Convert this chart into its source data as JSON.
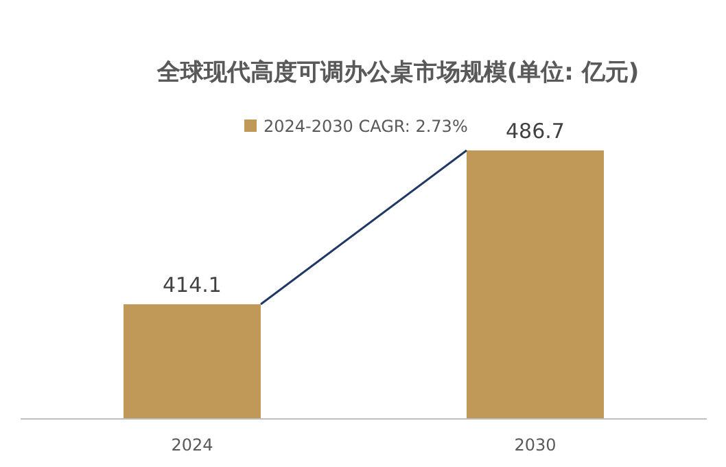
{
  "chart_data": {
    "type": "bar",
    "title": "全球现代高度可调办公桌市场规模(单位: 亿元)",
    "categories": [
      "2024",
      "2030"
    ],
    "series": [
      {
        "name": "2024-2030 CAGR: 2.73%",
        "color": "#c09858",
        "values": [
          414.1,
          486.7
        ]
      }
    ],
    "ylim": [
      360,
      500
    ],
    "data_labels": true,
    "legend": "top",
    "tick_labels": "x"
  }
}
